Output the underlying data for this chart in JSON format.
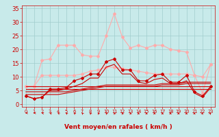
{
  "bg_color": "#c8eaea",
  "grid_color": "#a0cccc",
  "xlabel": "Vent moyen/en rafales ( km/h )",
  "xlabel_color": "#cc0000",
  "xlabel_fontsize": 6.5,
  "ytick_color": "#cc0000",
  "xtick_color": "#cc0000",
  "ytick_fontsize": 6,
  "xtick_fontsize": 4.8,
  "ylim": [
    -1,
    36
  ],
  "xlim": [
    -0.5,
    23.5
  ],
  "yticks": [
    0,
    5,
    10,
    15,
    20,
    25,
    30,
    35
  ],
  "xticks": [
    0,
    1,
    2,
    3,
    4,
    5,
    6,
    7,
    8,
    9,
    10,
    11,
    12,
    13,
    14,
    15,
    16,
    17,
    18,
    19,
    20,
    21,
    22,
    23
  ],
  "series": [
    {
      "x": [
        0,
        1,
        2,
        3,
        4,
        5,
        6,
        7,
        8,
        9,
        10,
        11,
        12,
        13,
        14,
        15,
        16,
        17,
        18,
        19,
        20,
        21,
        22,
        23
      ],
      "y": [
        6.5,
        6.5,
        16.0,
        16.5,
        21.5,
        21.5,
        21.5,
        18.0,
        17.5,
        17.5,
        25.0,
        33.0,
        24.5,
        20.5,
        21.5,
        20.5,
        21.5,
        21.5,
        20.0,
        19.5,
        19.0,
        10.5,
        4.0,
        14.5
      ],
      "color": "#ffaaaa",
      "lw": 0.8,
      "marker": "D",
      "ms": 2.0,
      "zorder": 2
    },
    {
      "x": [
        0,
        1,
        2,
        3,
        4,
        5,
        6,
        7,
        8,
        9,
        10,
        11,
        12,
        13,
        14,
        15,
        16,
        17,
        18,
        19,
        20,
        21,
        22,
        23
      ],
      "y": [
        6.5,
        6.5,
        10.5,
        10.5,
        10.5,
        10.5,
        10.5,
        11.0,
        12.0,
        12.5,
        13.5,
        13.5,
        13.0,
        12.5,
        12.0,
        11.5,
        11.0,
        11.0,
        11.0,
        11.0,
        11.0,
        10.5,
        10.0,
        14.5
      ],
      "color": "#ffaaaa",
      "lw": 0.8,
      "marker": "D",
      "ms": 2.0,
      "zorder": 3
    },
    {
      "x": [
        0,
        1,
        2,
        3,
        4,
        5,
        6,
        7,
        8,
        9,
        10,
        11,
        12,
        13,
        14,
        15,
        16,
        17,
        18,
        19,
        20,
        21,
        22,
        23
      ],
      "y": [
        3.5,
        3.5,
        3.5,
        3.5,
        3.5,
        4.0,
        4.5,
        5.0,
        5.5,
        6.0,
        6.5,
        6.5,
        6.5,
        6.5,
        6.5,
        6.5,
        6.5,
        7.0,
        7.0,
        7.0,
        7.5,
        7.5,
        7.5,
        7.5
      ],
      "color": "#cc0000",
      "lw": 0.8,
      "marker": null,
      "ms": 0,
      "zorder": 4
    },
    {
      "x": [
        0,
        1,
        2,
        3,
        4,
        5,
        6,
        7,
        8,
        9,
        10,
        11,
        12,
        13,
        14,
        15,
        16,
        17,
        18,
        19,
        20,
        21,
        22,
        23
      ],
      "y": [
        4.5,
        4.5,
        4.5,
        4.5,
        4.5,
        4.5,
        5.0,
        5.5,
        6.0,
        6.5,
        7.0,
        7.0,
        7.0,
        7.0,
        7.0,
        7.0,
        7.0,
        7.5,
        7.5,
        7.5,
        8.0,
        8.0,
        8.0,
        8.0
      ],
      "color": "#cc0000",
      "lw": 0.8,
      "marker": null,
      "ms": 0,
      "zorder": 4
    },
    {
      "x": [
        0,
        1,
        2,
        3,
        4,
        5,
        6,
        7,
        8,
        9,
        10,
        11,
        12,
        13,
        14,
        15,
        16,
        17,
        18,
        19,
        20,
        21,
        22,
        23
      ],
      "y": [
        5.5,
        5.5,
        5.5,
        5.5,
        5.5,
        5.5,
        5.5,
        5.5,
        5.5,
        5.5,
        5.5,
        5.5,
        5.5,
        5.5,
        5.5,
        5.5,
        5.5,
        5.5,
        5.5,
        5.5,
        5.5,
        5.5,
        5.5,
        5.5
      ],
      "color": "#cc0000",
      "lw": 0.8,
      "marker": null,
      "ms": 0,
      "zorder": 4
    },
    {
      "x": [
        0,
        1,
        2,
        3,
        4,
        5,
        6,
        7,
        8,
        9,
        10,
        11,
        12,
        13,
        14,
        15,
        16,
        17,
        18,
        19,
        20,
        21,
        22,
        23
      ],
      "y": [
        6.5,
        6.5,
        6.5,
        6.5,
        6.5,
        6.5,
        6.5,
        6.5,
        6.5,
        6.5,
        6.5,
        6.5,
        6.5,
        6.5,
        6.5,
        6.5,
        6.5,
        6.5,
        6.5,
        6.5,
        6.5,
        6.5,
        6.5,
        6.5
      ],
      "color": "#cc0000",
      "lw": 0.8,
      "marker": null,
      "ms": 0,
      "zorder": 4
    },
    {
      "x": [
        0,
        1,
        2,
        3,
        4,
        5,
        6,
        7,
        8,
        9,
        10,
        11,
        12,
        13,
        14,
        15,
        16,
        17,
        18,
        19,
        20,
        21,
        22,
        23
      ],
      "y": [
        3.0,
        2.0,
        2.5,
        5.0,
        5.0,
        5.5,
        6.5,
        7.5,
        9.5,
        9.5,
        13.5,
        14.5,
        11.0,
        11.0,
        8.0,
        7.5,
        9.0,
        9.5,
        7.5,
        7.5,
        8.5,
        4.0,
        2.5,
        6.0
      ],
      "color": "#cc0000",
      "lw": 0.8,
      "marker": null,
      "ms": 0,
      "zorder": 5
    },
    {
      "x": [
        0,
        1,
        2,
        3,
        4,
        5,
        6,
        7,
        8,
        9,
        10,
        11,
        12,
        13,
        14,
        15,
        16,
        17,
        18,
        19,
        20,
        21,
        22,
        23
      ],
      "y": [
        3.0,
        2.0,
        2.5,
        5.5,
        5.5,
        6.0,
        8.5,
        9.5,
        11.0,
        11.0,
        15.5,
        16.5,
        12.5,
        12.5,
        8.5,
        8.5,
        10.5,
        11.0,
        8.0,
        8.0,
        10.5,
        4.5,
        3.0,
        6.5
      ],
      "color": "#cc0000",
      "lw": 0.8,
      "marker": "D",
      "ms": 2.0,
      "zorder": 6
    }
  ],
  "arrow_row_color": "#cc0000",
  "spine_color": "#cc0000"
}
